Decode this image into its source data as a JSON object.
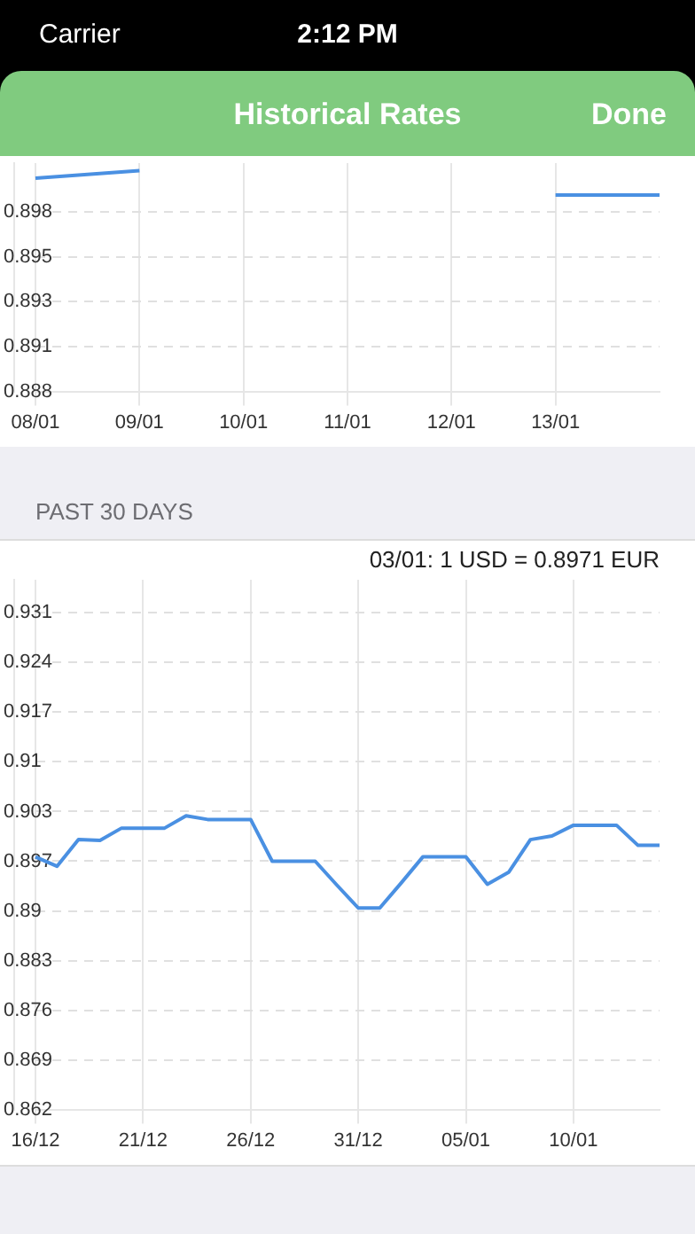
{
  "chart_data": [
    {
      "type": "line",
      "title": "Historical Rates",
      "annotations": [
        "Carrier",
        "2:12 PM",
        "Done"
      ],
      "categories": [
        "08/01",
        "09/01",
        "10/01",
        "11/01",
        "12/01",
        "13/01",
        null
      ],
      "series": [
        {
          "color": "#4a90e2",
          "values": [
            0.8995,
            0.8999,
            null,
            null,
            null,
            0.8986,
            0.8986
          ]
        }
      ],
      "ylim": [
        0.8881,
        0.9003
      ],
      "yticks": [
        {
          "value": 0.8881,
          "label": "0.888"
        },
        {
          "value": 0.8905,
          "label": "0.891"
        },
        {
          "value": 0.8929,
          "label": "0.893"
        },
        {
          "value": 0.8953,
          "label": "0.895"
        },
        {
          "value": 0.8977,
          "label": "0.898"
        }
      ],
      "grid": true,
      "legend": false,
      "marker": "none",
      "line_style": "solid"
    },
    {
      "type": "line",
      "title": "PAST 30 DAYS",
      "annotations": [
        "03/01: 1 USD = 0.8971 EUR"
      ],
      "categories": [
        "16/12",
        null,
        null,
        null,
        null,
        "21/12",
        null,
        null,
        null,
        null,
        "26/12",
        null,
        null,
        null,
        null,
        "31/12",
        null,
        null,
        null,
        null,
        "05/01",
        null,
        null,
        null,
        null,
        "10/01",
        null,
        null,
        null,
        null
      ],
      "series": [
        {
          "color": "#4a90e2",
          "values": [
            0.8971,
            0.8958,
            0.8995,
            0.8994,
            0.9011,
            0.9011,
            0.9011,
            0.9028,
            0.9023,
            0.9023,
            0.9023,
            0.8965,
            0.8965,
            0.8965,
            0.8932,
            0.89,
            0.89,
            0.8935,
            0.8971,
            0.8971,
            0.8971,
            0.8933,
            0.895,
            0.8995,
            0.9,
            0.9015,
            0.9015,
            0.9015,
            0.8987,
            0.8987
          ]
        }
      ],
      "ylim": [
        0.862,
        0.9356
      ],
      "yticks": [
        {
          "value": 0.862,
          "label": "0.862"
        },
        {
          "value": 0.8689,
          "label": "0.869"
        },
        {
          "value": 0.8758,
          "label": "0.876"
        },
        {
          "value": 0.8827,
          "label": "0.883"
        },
        {
          "value": 0.8896,
          "label": "0.89"
        },
        {
          "value": 0.8965,
          "label": "0.897"
        },
        {
          "value": 0.9034,
          "label": "0.903"
        },
        {
          "value": 0.9103,
          "label": "0.91"
        },
        {
          "value": 0.9172,
          "label": "0.917"
        },
        {
          "value": 0.9241,
          "label": "0.924"
        },
        {
          "value": 0.931,
          "label": "0.931"
        }
      ],
      "grid": true,
      "legend": false,
      "marker": "none",
      "line_style": "solid"
    }
  ]
}
